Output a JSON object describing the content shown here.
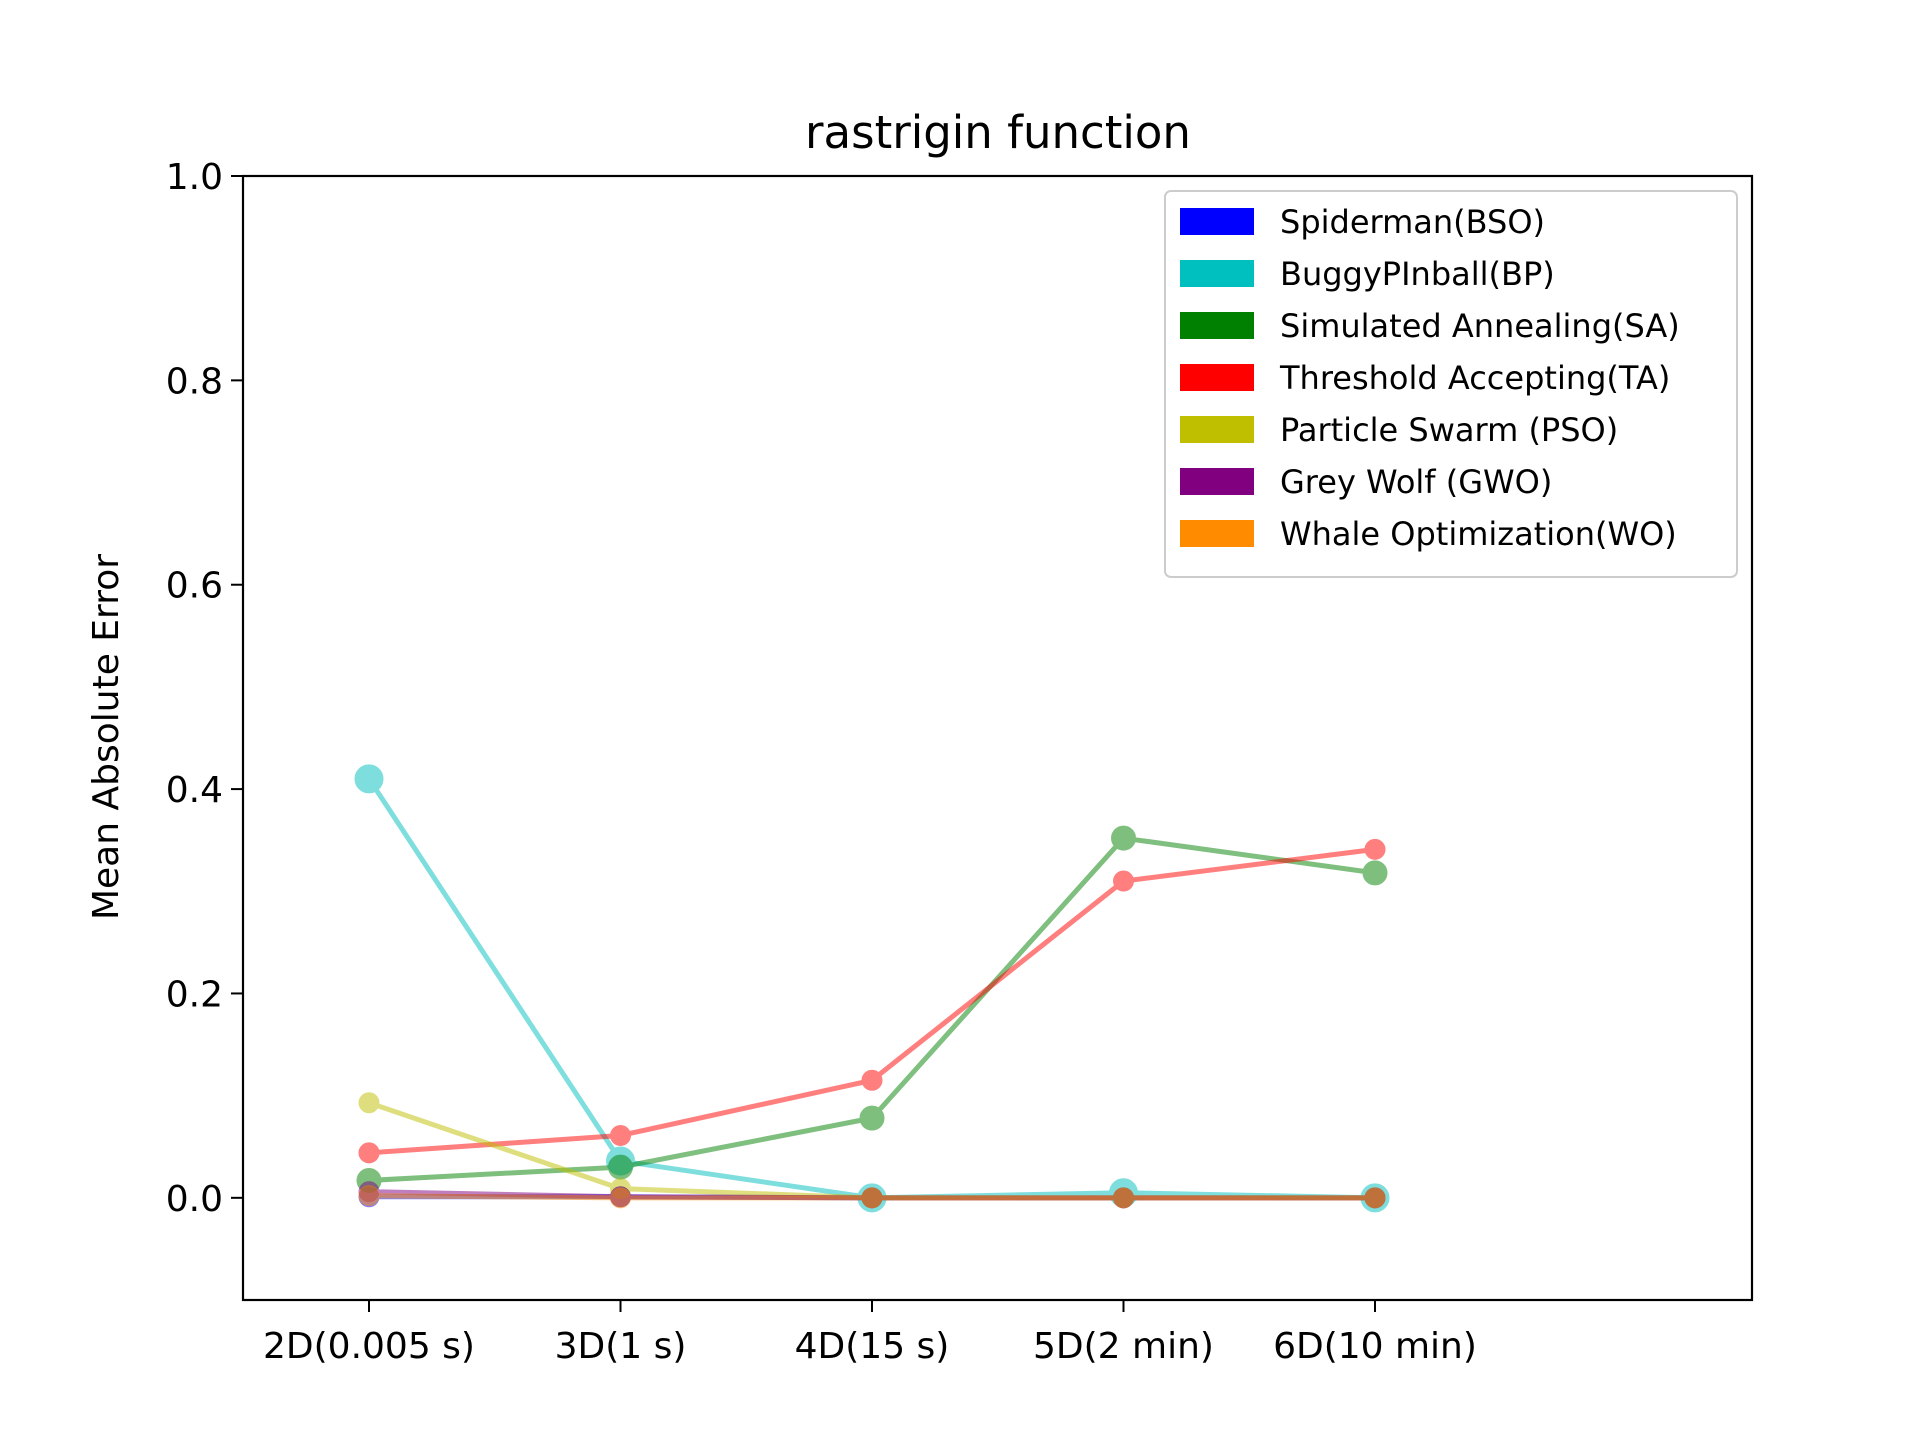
{
  "chart_data": {
    "type": "line",
    "title": "rastrigin function",
    "xlabel": "",
    "ylabel": "Mean Absolute Error",
    "categories": [
      "2D(0.005 s)",
      "3D(1 s)",
      "4D(15 s)",
      "5D(2 min)",
      "6D(10 min)"
    ],
    "ylim": [
      -0.1,
      1.0
    ],
    "yticks": [
      "0.0",
      "0.2",
      "0.4",
      "0.6",
      "0.8",
      "1.0"
    ],
    "grid": false,
    "legend_position": "top-right",
    "series": [
      {
        "name": "Spiderman(BSO)",
        "color": "#0000ff",
        "values": [
          0.001,
          0.001,
          0.0,
          0.0,
          0.0
        ]
      },
      {
        "name": "BuggyPInball(BP)",
        "color": "#00bfbf",
        "values": [
          0.41,
          0.036,
          0.0,
          0.005,
          0.0
        ]
      },
      {
        "name": "Simulated Annealing(SA)",
        "color": "#008000",
        "values": [
          0.017,
          0.03,
          0.078,
          0.352,
          0.318
        ]
      },
      {
        "name": "Threshold Accepting(TA)",
        "color": "#ff0000",
        "values": [
          0.044,
          0.061,
          0.115,
          0.31,
          0.341
        ]
      },
      {
        "name": "Particle Swarm (PSO)",
        "color": "#bfbf00",
        "values": [
          0.093,
          0.009,
          0.0,
          0.0,
          0.0
        ]
      },
      {
        "name": "Grey Wolf (GWO)",
        "color": "#800080",
        "values": [
          0.006,
          0.001,
          0.0,
          0.0,
          0.0
        ]
      },
      {
        "name": "Whale Optimization(WO)",
        "color": "#ff8c00",
        "values": [
          0.002,
          0.0,
          0.0,
          0.0,
          0.0
        ]
      }
    ]
  }
}
